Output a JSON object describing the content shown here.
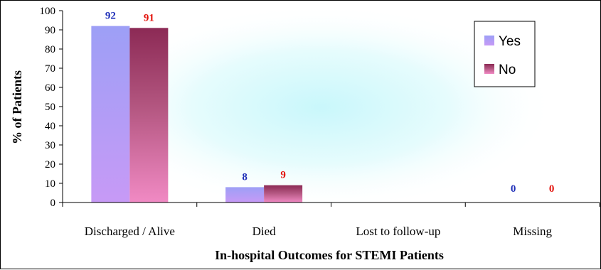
{
  "chart_data": {
    "type": "bar",
    "title": "",
    "xlabel": "In-hospital Outcomes for STEMI Patients",
    "ylabel": "% of Patients",
    "ylim": [
      0,
      100
    ],
    "yticks": [
      0,
      10,
      20,
      30,
      40,
      50,
      60,
      70,
      80,
      90,
      100
    ],
    "categories": [
      "Discharged / Alive",
      "Died",
      "Lost to follow-up",
      "Missing"
    ],
    "series": [
      {
        "name": "Yes",
        "values": [
          92,
          8,
          null,
          0
        ],
        "labels": [
          "92",
          "8",
          "",
          "0"
        ],
        "label_color": "#1f2fb8"
      },
      {
        "name": "No",
        "values": [
          91,
          9,
          null,
          0
        ],
        "labels": [
          "91",
          "9",
          "",
          "0"
        ],
        "label_color": "#e3120b"
      }
    ],
    "legend": {
      "position": "top-right"
    },
    "grid": false
  }
}
